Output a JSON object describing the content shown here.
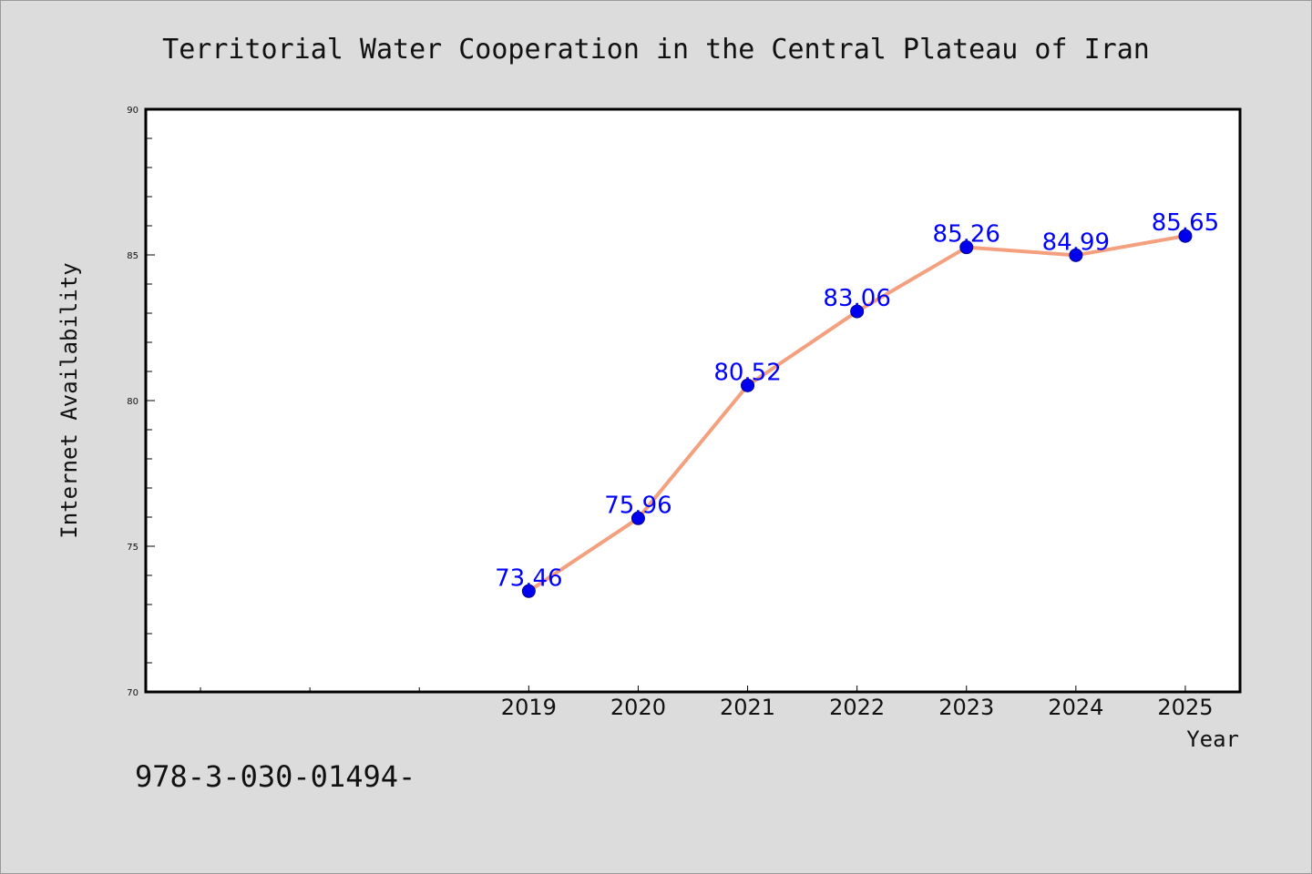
{
  "chart_data": {
    "type": "line",
    "title": "Territorial Water Cooperation in the Central Plateau of Iran",
    "xlabel": "Year",
    "ylabel": "Internet Availability",
    "x": [
      2019,
      2020,
      2021,
      2022,
      2023,
      2024,
      2025
    ],
    "xlim": [
      2015.5,
      2025.5
    ],
    "ylim": [
      70,
      90
    ],
    "yticks": [
      70,
      75,
      80,
      85,
      90
    ],
    "series": [
      {
        "values": [
          73.46,
          75.96,
          80.52,
          83.06,
          85.26,
          84.99,
          85.65
        ],
        "data_labels": [
          "73.46",
          "75.96",
          "80.52",
          "83.06",
          "85.26",
          "84.99",
          "85.65"
        ]
      }
    ],
    "grid": false,
    "legend": "none",
    "colors": {
      "line": "#f4a07e",
      "marker": "#0000ee",
      "marker_edge": "#00008b",
      "data_label": "#0000ff",
      "plot_background": "#ffffff",
      "figure_background": "#dcdcdc"
    }
  },
  "footer": {
    "text": "978-3-030-01494-"
  }
}
